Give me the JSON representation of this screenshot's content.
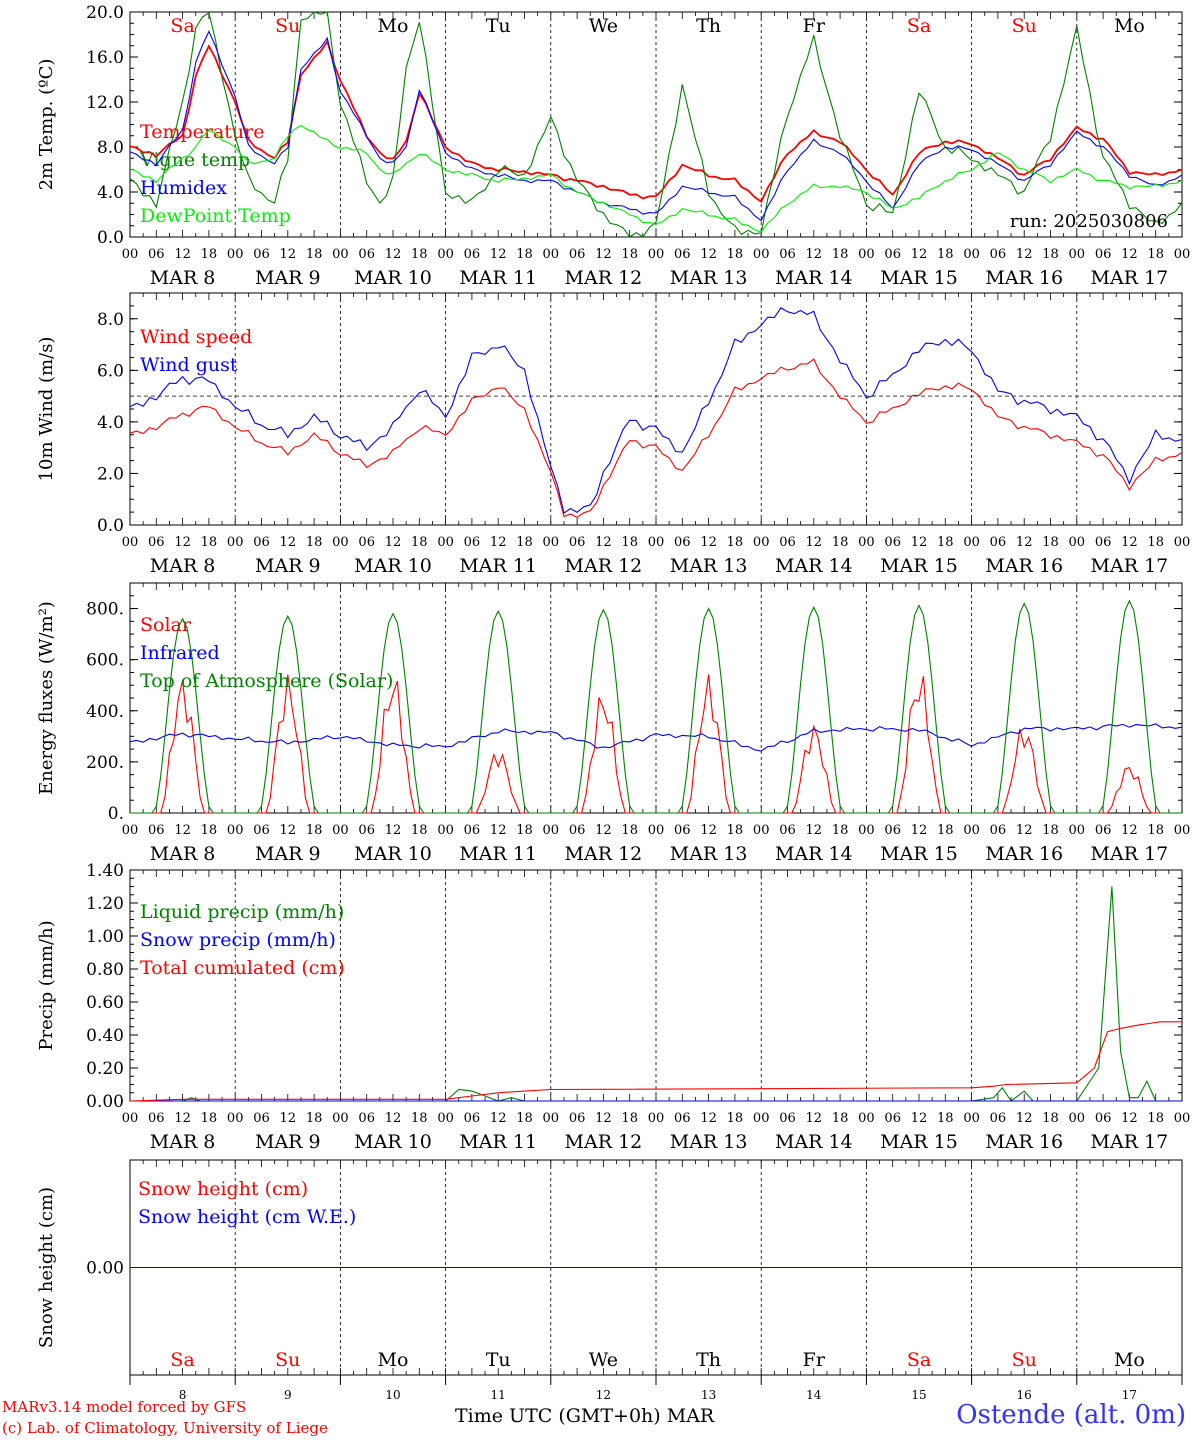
{
  "colors": {
    "red": "#ff0000",
    "blue": "#0000ff",
    "green": "#008000",
    "lightgreen": "#00ee00",
    "weekend": "#ff0000",
    "weekday": "#000000"
  },
  "footer": {
    "credit_line1": "MARv3.14 model forced by GFS",
    "credit_line2": "(c) Lab. of Climatology, University of Liege",
    "xaxis_title": "Time UTC (GMT+0h)",
    "month": "MAR",
    "station": "Ostende (alt. 0m)"
  },
  "x_axis": {
    "hour_ticks": [
      "00",
      "06",
      "12",
      "18"
    ],
    "final_tick": "00",
    "date_labels": [
      "MAR  8",
      "MAR  9",
      "MAR 10",
      "MAR 11",
      "MAR 12",
      "MAR 13",
      "MAR 14",
      "MAR 15",
      "MAR 16",
      "MAR 17"
    ],
    "day_numbers": [
      "8",
      "9",
      "10",
      "11",
      "12",
      "13",
      "14",
      "15",
      "16",
      "17"
    ],
    "weekdays": [
      "Sa",
      "Su",
      "Mo",
      "Tu",
      "We",
      "Th",
      "Fr",
      "Sa",
      "Su",
      "Mo"
    ],
    "weekend_flags": [
      true,
      true,
      false,
      false,
      false,
      false,
      false,
      true,
      true,
      false
    ]
  },
  "chart_data": [
    {
      "type": "line",
      "ylabel": "2m Temp. (ºC)",
      "ylim": [
        0,
        20
      ],
      "y_ticks": [
        "0.0",
        "4.0",
        "8.0",
        "12.0",
        "16.0",
        "20.0"
      ],
      "y_tick_values": [
        0,
        4,
        8,
        12,
        16,
        20
      ],
      "grid": "vertical dashed lines at 00 UTC",
      "annotation": "run: 2025030806",
      "x_unit": "hours since MAR 8 00 UTC",
      "series": [
        {
          "name": "Temperature",
          "color": "red",
          "x": [
            0,
            6,
            12,
            15,
            18,
            24,
            27,
            33,
            36,
            39,
            45,
            48,
            54,
            57,
            60,
            63,
            66,
            72,
            78,
            84,
            90,
            96,
            102,
            108,
            114,
            120,
            126,
            132,
            138,
            144,
            150,
            156,
            162,
            168,
            174,
            180,
            186,
            192,
            198,
            204,
            210,
            216,
            222,
            228,
            234,
            240
          ],
          "y": [
            8,
            7.3,
            9,
            14.3,
            17,
            12,
            8.5,
            7,
            8.5,
            14.5,
            17.2,
            14,
            9,
            7.5,
            6.8,
            8.5,
            12.9,
            8,
            6.5,
            6,
            5.8,
            5.5,
            5,
            4.5,
            3.8,
            3.5,
            6.4,
            5.5,
            5,
            3.2,
            7.5,
            9.3,
            8.5,
            6,
            3.7,
            7.5,
            8.5,
            8.3,
            7,
            5.5,
            7,
            9.7,
            8.7,
            5.8,
            5.5,
            6
          ]
        },
        {
          "name": "Vigne temp",
          "color": "green",
          "x": [
            0,
            6,
            12,
            15,
            18,
            24,
            27,
            33,
            36,
            39,
            45,
            48,
            54,
            57,
            60,
            63,
            66,
            72,
            78,
            84,
            90,
            96,
            102,
            108,
            114,
            120,
            126,
            132,
            138,
            144,
            150,
            156,
            162,
            168,
            174,
            180,
            186,
            192,
            198,
            204,
            210,
            216,
            222,
            228,
            234,
            240
          ],
          "y": [
            5,
            3,
            12,
            18.5,
            20,
            9,
            5,
            3,
            7,
            19.5,
            20,
            12,
            5,
            3,
            5,
            15,
            19.5,
            4,
            3,
            6,
            5.5,
            10.5,
            5,
            2,
            0,
            1,
            13.5,
            4,
            0.5,
            0.5,
            11,
            17.5,
            9,
            3,
            2,
            13,
            8,
            7,
            5.5,
            4,
            9,
            18.5,
            7,
            3,
            1,
            3
          ]
        },
        {
          "name": "Humidex",
          "color": "blue",
          "x": [
            0,
            6,
            12,
            15,
            18,
            24,
            27,
            33,
            36,
            39,
            45,
            48,
            54,
            57,
            60,
            63,
            66,
            72,
            78,
            84,
            90,
            96,
            102,
            108,
            114,
            120,
            126,
            132,
            138,
            144,
            150,
            156,
            162,
            168,
            174,
            180,
            186,
            192,
            198,
            204,
            210,
            216,
            222,
            228,
            234,
            240
          ],
          "y": [
            7.5,
            6.5,
            9.5,
            15.5,
            18.3,
            12.5,
            8,
            6.5,
            8,
            15,
            17.5,
            13,
            9,
            7,
            6.5,
            8,
            13.2,
            7.5,
            6,
            5.5,
            5,
            5,
            4,
            3,
            2.5,
            2,
            4.5,
            4,
            3.5,
            1.5,
            6,
            8.5,
            7.5,
            5,
            2.5,
            6.5,
            8,
            7.8,
            6.5,
            5,
            6.5,
            9.3,
            8,
            5.5,
            4.5,
            5.5
          ]
        },
        {
          "name": "DewPoint Temp",
          "color": "lightgreen",
          "x": [
            0,
            6,
            12,
            15,
            18,
            24,
            27,
            33,
            36,
            39,
            45,
            48,
            54,
            57,
            60,
            63,
            66,
            72,
            78,
            84,
            90,
            96,
            102,
            108,
            114,
            120,
            126,
            132,
            138,
            144,
            150,
            156,
            162,
            168,
            174,
            180,
            186,
            192,
            198,
            204,
            210,
            216,
            222,
            228,
            234,
            240
          ],
          "y": [
            6,
            5,
            7,
            8,
            9.5,
            8,
            6.5,
            7,
            9,
            10,
            8.5,
            8,
            7.5,
            6,
            5.5,
            6.5,
            7.5,
            6,
            5.5,
            5,
            5.2,
            5.5,
            4,
            3,
            2,
            1,
            2.5,
            2,
            1.5,
            0.5,
            3,
            4.5,
            4.5,
            4,
            2.5,
            3.5,
            5,
            6,
            7.5,
            6,
            5,
            6,
            5,
            4.5,
            4.5,
            5
          ]
        }
      ]
    },
    {
      "type": "line",
      "ylabel": "10m Wind (m/s)",
      "ylim": [
        0,
        9
      ],
      "y_ticks": [
        "0.0",
        "2.0",
        "4.0",
        "6.0",
        "8.0"
      ],
      "y_tick_values": [
        0,
        2,
        4,
        6,
        8
      ],
      "reference_line": 5,
      "x_unit": "hours since MAR 8 00 UTC",
      "series": [
        {
          "name": "Wind speed",
          "color": "red",
          "x": [
            0,
            6,
            12,
            18,
            24,
            30,
            36,
            42,
            48,
            54,
            60,
            66,
            72,
            78,
            84,
            90,
            96,
            99,
            102,
            105,
            108,
            114,
            120,
            126,
            132,
            138,
            144,
            150,
            156,
            162,
            168,
            174,
            180,
            186,
            192,
            198,
            204,
            210,
            216,
            222,
            228,
            234,
            240
          ],
          "y": [
            3.5,
            3.8,
            4.3,
            4.6,
            3.8,
            3.2,
            2.8,
            3.5,
            2.8,
            2.3,
            2.8,
            3.8,
            3.5,
            4.8,
            5.4,
            4.5,
            2,
            0.5,
            0.3,
            0.5,
            1.5,
            3.3,
            3,
            2.1,
            3.5,
            5.2,
            5.7,
            6.1,
            6.3,
            5,
            4,
            4.5,
            5.1,
            5.4,
            5.3,
            4.2,
            3.8,
            3.5,
            3.2,
            2.7,
            1.5,
            2.5,
            2.8
          ]
        },
        {
          "name": "Wind gust",
          "color": "blue",
          "x": [
            0,
            6,
            12,
            18,
            24,
            30,
            36,
            42,
            48,
            54,
            60,
            66,
            72,
            78,
            84,
            90,
            96,
            99,
            102,
            105,
            108,
            114,
            120,
            126,
            132,
            138,
            144,
            150,
            156,
            162,
            168,
            174,
            180,
            186,
            192,
            198,
            204,
            210,
            216,
            222,
            228,
            234,
            240
          ],
          "y": [
            4.5,
            5,
            5.7,
            5.6,
            4.6,
            3.9,
            3.5,
            4.2,
            3.5,
            3,
            3.8,
            5.3,
            4.2,
            6.5,
            7,
            6,
            2.2,
            0.7,
            0.5,
            0.7,
            2,
            4.1,
            3.7,
            2.8,
            4.8,
            7,
            7.8,
            8.4,
            8.1,
            6.4,
            5,
            5.8,
            6.8,
            7.2,
            6.8,
            5.2,
            4.8,
            4.5,
            4.2,
            3.3,
            1.8,
            3.5,
            3.3
          ]
        }
      ]
    },
    {
      "type": "line",
      "ylabel": "Energy fluxes (W/m²)",
      "ylim": [
        0,
        900
      ],
      "y_ticks": [
        "0.",
        "200.",
        "400.",
        "600.",
        "800."
      ],
      "y_tick_values": [
        0,
        200,
        400,
        600,
        800
      ],
      "x_unit": "hours since MAR 8 00 UTC",
      "series": [
        {
          "name": "Solar",
          "color": "red",
          "peaks": [
            550,
            550,
            570,
            260,
            500,
            550,
            360,
            580,
            360,
            200
          ]
        },
        {
          "name": "Infrared",
          "color": "blue",
          "x": [
            0,
            12,
            24,
            36,
            48,
            60,
            72,
            84,
            96,
            108,
            120,
            132,
            144,
            156,
            168,
            180,
            192,
            204,
            216,
            228,
            240
          ],
          "y": [
            275,
            310,
            290,
            275,
            300,
            265,
            260,
            320,
            315,
            255,
            305,
            300,
            245,
            320,
            330,
            325,
            265,
            330,
            330,
            345,
            335
          ]
        },
        {
          "name": "Top of Atmosphere (Solar)",
          "color": "green",
          "peaks": [
            760,
            770,
            780,
            790,
            795,
            800,
            805,
            812,
            820,
            830
          ]
        }
      ]
    },
    {
      "type": "line",
      "ylabel": "Precip (mm/h)",
      "ylim": [
        0,
        1.4
      ],
      "y_ticks": [
        "0.00",
        "0.20",
        "0.40",
        "0.60",
        "0.80",
        "1.00",
        "1.20",
        "1.40"
      ],
      "y_tick_values": [
        0,
        0.2,
        0.4,
        0.6,
        0.8,
        1.0,
        1.2,
        1.4
      ],
      "x_unit": "hours since MAR 8 00 UTC",
      "series": [
        {
          "name": "Liquid precip (mm/h)",
          "color": "green",
          "x": [
            0,
            12,
            14,
            16,
            24,
            72,
            75,
            78,
            81,
            84,
            87,
            90,
            96,
            192,
            197,
            199,
            201,
            204,
            206,
            216,
            221,
            224,
            226,
            228,
            230,
            232,
            234,
            236,
            240
          ],
          "y": [
            0,
            0,
            0.02,
            0,
            0,
            0,
            0.07,
            0.06,
            0.03,
            0,
            0.02,
            0,
            0,
            0,
            0.02,
            0.08,
            0,
            0.06,
            0,
            0,
            0.2,
            1.3,
            0.3,
            0.02,
            0.02,
            0.12,
            0,
            0,
            0
          ]
        },
        {
          "name": "Snow precip (mm/h)",
          "color": "blue",
          "x": [
            0,
            240
          ],
          "y": [
            0,
            0
          ]
        },
        {
          "name": "Total cumulated (cm)",
          "color": "red",
          "x": [
            0,
            12,
            24,
            72,
            78,
            84,
            90,
            96,
            192,
            197,
            200,
            216,
            220,
            223,
            226,
            230,
            235,
            240
          ],
          "y": [
            0,
            0.01,
            0.01,
            0.01,
            0.03,
            0.05,
            0.06,
            0.07,
            0.08,
            0.09,
            0.1,
            0.11,
            0.2,
            0.42,
            0.44,
            0.46,
            0.48,
            0.48
          ]
        }
      ]
    },
    {
      "type": "line",
      "ylabel": "Snow height (cm)",
      "ylim": [
        -1,
        1
      ],
      "y_ticks": [
        "0.00"
      ],
      "y_tick_values": [
        0
      ],
      "x_unit": "hours since MAR 8 00 UTC",
      "series": [
        {
          "name": "Snow height (cm)",
          "color": "red",
          "x": [
            0,
            240
          ],
          "y": [
            0,
            0
          ]
        },
        {
          "name": "Snow height (cm W.E.)",
          "color": "blue",
          "x": [
            0,
            240
          ],
          "y": [
            0,
            0
          ]
        }
      ]
    }
  ]
}
